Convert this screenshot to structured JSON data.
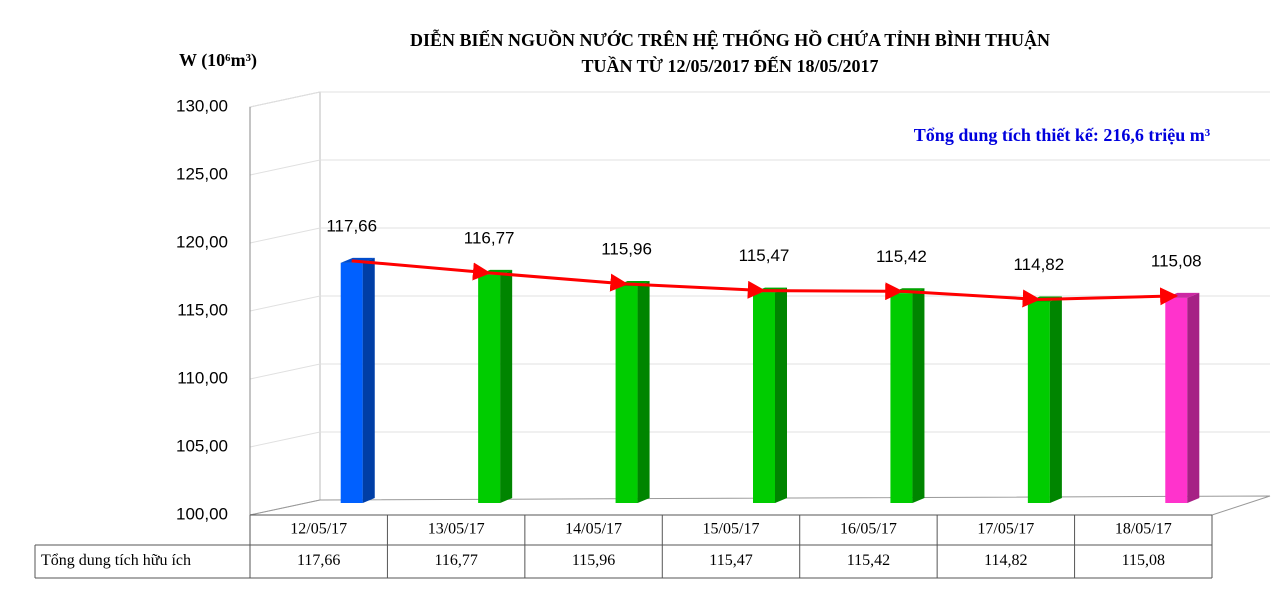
{
  "chart_data": {
    "type": "bar",
    "title": "DIỄN BIẾN NGUỒN NƯỚC TRÊN HỆ THỐNG HỒ CHỨA TỈNH BÌNH THUẬN",
    "subtitle": "TUẦN TỪ 12/05/2017 ĐẾN 18/05/2017",
    "y_label": "W (10⁶m³)",
    "annotation": "Tổng dung tích thiết kế: 216,6 triệu m³",
    "table_row_label": "Tổng dung tích hữu ích",
    "categories": [
      "12/05/17",
      "13/05/17",
      "14/05/17",
      "15/05/17",
      "16/05/17",
      "17/05/17",
      "18/05/17"
    ],
    "values": [
      117.66,
      116.77,
      115.96,
      115.47,
      115.42,
      114.82,
      115.08
    ],
    "value_labels": [
      "117,66",
      "116,77",
      "115,96",
      "115,47",
      "115,42",
      "114,82",
      "115,08"
    ],
    "colors": [
      "#0060ff",
      "#00cc00",
      "#00cc00",
      "#00cc00",
      "#00cc00",
      "#00cc00",
      "#ff33cc"
    ],
    "line_color": "#ff0000",
    "ylim": [
      100,
      130
    ],
    "yticks": [
      {
        "value": 100,
        "label": "100,00"
      },
      {
        "value": 105,
        "label": "105,00"
      },
      {
        "value": 110,
        "label": "110,00"
      },
      {
        "value": 115,
        "label": "115,00"
      },
      {
        "value": 120,
        "label": "120,00"
      },
      {
        "value": 125,
        "label": "125,00"
      },
      {
        "value": 130,
        "label": "130,00"
      }
    ],
    "grid": true
  }
}
